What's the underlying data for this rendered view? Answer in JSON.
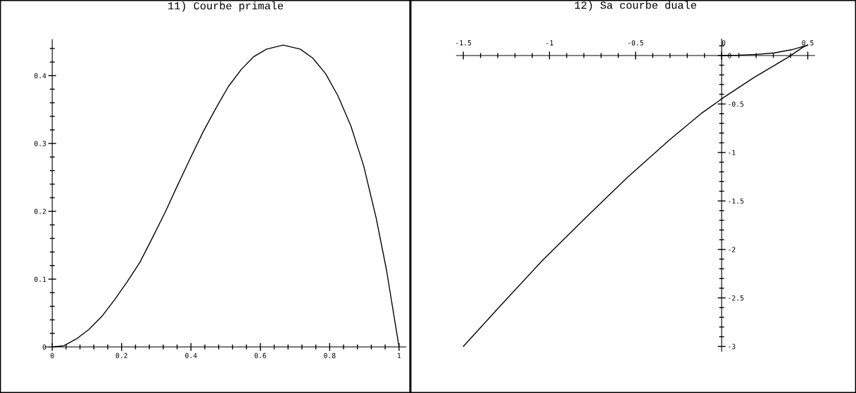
{
  "chart_data": [
    {
      "type": "line",
      "title": "11) Courbe primale",
      "xlim": [
        -0.02,
        1.02
      ],
      "ylim": [
        0,
        0.453
      ],
      "xticks": [
        0,
        {
          "value": 0.04,
          "label": null
        },
        {
          "value": 0.08,
          "label": null
        },
        {
          "value": 0.12,
          "label": null
        },
        {
          "value": 0.16,
          "label": null
        },
        0.2,
        {
          "value": 0.24,
          "label": null
        },
        {
          "value": 0.28,
          "label": null
        },
        {
          "value": 0.32,
          "label": null
        },
        {
          "value": 0.36,
          "label": null
        },
        0.4,
        {
          "value": 0.44,
          "label": null
        },
        {
          "value": 0.48,
          "label": null
        },
        {
          "value": 0.52,
          "label": null
        },
        {
          "value": 0.56,
          "label": null
        },
        0.6,
        {
          "value": 0.64,
          "label": null
        },
        {
          "value": 0.68,
          "label": null
        },
        {
          "value": 0.72,
          "label": null
        },
        {
          "value": 0.76,
          "label": null
        },
        0.8,
        {
          "value": 0.84,
          "label": null
        },
        {
          "value": 0.88,
          "label": null
        },
        {
          "value": 0.92,
          "label": null
        },
        {
          "value": 0.96,
          "label": null
        },
        1
      ],
      "yticks": [
        0,
        {
          "value": 0.02,
          "label": null
        },
        {
          "value": 0.04,
          "label": null
        },
        {
          "value": 0.06,
          "label": null
        },
        {
          "value": 0.08,
          "label": null
        },
        0.1,
        {
          "value": 0.12,
          "label": null
        },
        {
          "value": 0.14,
          "label": null
        },
        {
          "value": 0.16,
          "label": null
        },
        {
          "value": 0.18,
          "label": null
        },
        0.2,
        {
          "value": 0.22,
          "label": null
        },
        {
          "value": 0.24,
          "label": null
        },
        {
          "value": 0.26,
          "label": null
        },
        {
          "value": 0.28,
          "label": null
        },
        0.3,
        {
          "value": 0.32,
          "label": null
        },
        {
          "value": 0.34,
          "label": null
        },
        {
          "value": 0.36,
          "label": null
        },
        {
          "value": 0.38,
          "label": null
        },
        0.4,
        {
          "value": 0.42,
          "label": null
        },
        {
          "value": 0.44,
          "label": null
        }
      ],
      "series": [
        {
          "color": "#000000",
          "x": [
            0,
            0.034,
            0.07,
            0.106,
            0.143,
            0.179,
            0.216,
            0.253,
            0.289,
            0.326,
            0.362,
            0.399,
            0.435,
            0.472,
            0.508,
            0.545,
            0.581,
            0.618,
            0.666,
            0.715,
            0.751,
            0.788,
            0.824,
            0.861,
            0.898,
            0.934,
            0.964,
            1
          ],
          "values": [
            0,
            0.002,
            0.012,
            0.026,
            0.045,
            0.069,
            0.096,
            0.125,
            0.161,
            0.199,
            0.239,
            0.279,
            0.317,
            0.352,
            0.384,
            0.409,
            0.428,
            0.439,
            0.445,
            0.439,
            0.426,
            0.403,
            0.37,
            0.326,
            0.267,
            0.19,
            0.113,
            0
          ]
        }
      ]
    },
    {
      "type": "line",
      "title": "12) Sa courbe duale",
      "xlim": [
        -1.54,
        0.54
      ],
      "ylim": [
        -3.05,
        0.17
      ],
      "xticks": [
        -1.5,
        {
          "value": -1.4,
          "label": null
        },
        {
          "value": -1.3,
          "label": null
        },
        {
          "value": -1.2,
          "label": null
        },
        {
          "value": -1.1,
          "label": null
        },
        -1,
        {
          "value": -0.9,
          "label": null
        },
        {
          "value": -0.8,
          "label": null
        },
        {
          "value": -0.7,
          "label": null
        },
        {
          "value": -0.6,
          "label": null
        },
        -0.5,
        {
          "value": -0.4,
          "label": null
        },
        {
          "value": -0.3,
          "label": null
        },
        {
          "value": -0.2,
          "label": null
        },
        {
          "value": -0.1,
          "label": null
        },
        0,
        {
          "value": 0.1,
          "label": null
        },
        {
          "value": 0.2,
          "label": null
        },
        {
          "value": 0.3,
          "label": null
        },
        {
          "value": 0.4,
          "label": null
        },
        0.5
      ],
      "yticks": [
        {
          "value": 0.1,
          "label": null
        },
        0,
        {
          "value": -0.1,
          "label": null
        },
        {
          "value": -0.2,
          "label": null
        },
        {
          "value": -0.3,
          "label": null
        },
        {
          "value": -0.4,
          "label": null
        },
        -0.5,
        {
          "value": -0.6,
          "label": null
        },
        {
          "value": -0.7,
          "label": null
        },
        {
          "value": -0.8,
          "label": null
        },
        {
          "value": -0.9,
          "label": null
        },
        -1,
        {
          "value": -1.1,
          "label": null
        },
        {
          "value": -1.2,
          "label": null
        },
        {
          "value": -1.3,
          "label": null
        },
        {
          "value": -1.4,
          "label": null
        },
        -1.5,
        {
          "value": -1.6,
          "label": null
        },
        {
          "value": -1.7,
          "label": null
        },
        {
          "value": -1.8,
          "label": null
        },
        {
          "value": -1.9,
          "label": null
        },
        -2,
        {
          "value": -2.1,
          "label": null
        },
        {
          "value": -2.2,
          "label": null
        },
        {
          "value": -2.3,
          "label": null
        },
        {
          "value": -2.4,
          "label": null
        },
        -2.5,
        {
          "value": -2.6,
          "label": null
        },
        {
          "value": -2.7,
          "label": null
        },
        {
          "value": -2.8,
          "label": null
        },
        {
          "value": -2.9,
          "label": null
        },
        -3
      ],
      "series": [
        {
          "color": "#000000",
          "x": [
            -1.5,
            -1.284,
            -1.039,
            -0.794,
            -0.549,
            -0.303,
            -0.12,
            0.01,
            0.187,
            0.383,
            0.474,
            0.5,
            0.406,
            0.305,
            0.204,
            0.103,
            0
          ],
          "values": [
            -3.0,
            -2.58,
            -2.11,
            -1.68,
            -1.26,
            -0.87,
            -0.6,
            -0.435,
            -0.228,
            -0.021,
            0.088,
            0.107,
            0.059,
            0.027,
            0.011,
            0.003,
            0
          ]
        }
      ]
    }
  ]
}
